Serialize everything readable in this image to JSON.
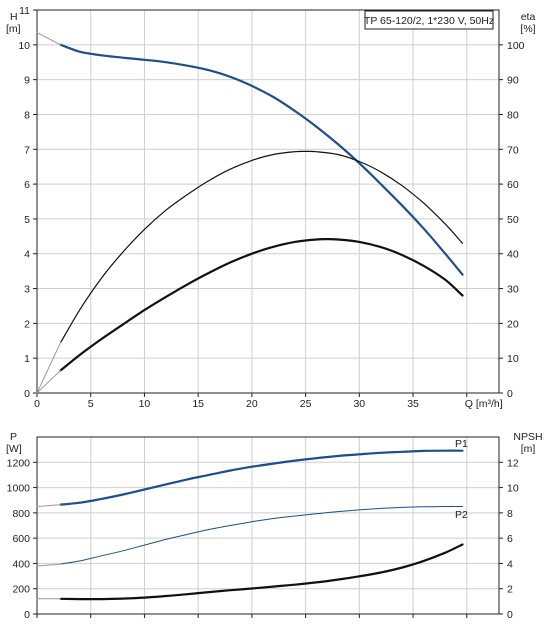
{
  "chart_data": [
    {
      "type": "line",
      "title": "TP 65-120/2, 1*230 V, 50Hz",
      "x_axis": {
        "label": "Q [m³/h]",
        "range": [
          0,
          43
        ],
        "ticks": [
          0,
          5,
          10,
          15,
          20,
          25,
          30,
          35
        ]
      },
      "y_left": {
        "label_line1": "H",
        "label_line2": "[m]",
        "range": [
          0,
          11
        ],
        "ticks": [
          0,
          1,
          2,
          3,
          4,
          5,
          6,
          7,
          8,
          9,
          10,
          11
        ]
      },
      "y_right": {
        "label_line1": "eta",
        "label_line2": "[%]",
        "range": [
          0,
          110
        ],
        "ticks": [
          0,
          10,
          20,
          30,
          40,
          50,
          60,
          70,
          80,
          90,
          100
        ]
      },
      "grid": true,
      "series": [
        {
          "axis": "left",
          "color": "#1f4e8c",
          "width": 2.2,
          "x": [
            2.2,
            4,
            6,
            8,
            10,
            12,
            14,
            16,
            18,
            20,
            22,
            24,
            26,
            28,
            30,
            32,
            34,
            36,
            38,
            39.6
          ],
          "y": [
            10.0,
            9.8,
            9.7,
            9.63,
            9.57,
            9.5,
            9.4,
            9.27,
            9.08,
            8.82,
            8.5,
            8.1,
            7.65,
            7.15,
            6.6,
            6.0,
            5.38,
            4.72,
            4.0,
            3.4
          ]
        },
        {
          "axis": "left",
          "color": "#999999",
          "width": 1,
          "x": [
            0,
            2.2
          ],
          "y": [
            10.35,
            10.0
          ]
        },
        {
          "axis": "right",
          "color": "#111111",
          "width": 1.2,
          "x": [
            2.2,
            4,
            6,
            8,
            10,
            12,
            14,
            16,
            18,
            20,
            22,
            24,
            25,
            26,
            28,
            30,
            32,
            34,
            36,
            38,
            39.6
          ],
          "y": [
            14.5,
            24,
            33,
            40.5,
            47,
            52.5,
            57,
            61,
            64.3,
            66.8,
            68.5,
            69.3,
            69.4,
            69.3,
            68.5,
            66.5,
            63.5,
            59.5,
            54.5,
            48.5,
            43
          ]
        },
        {
          "axis": "right",
          "color": "#999999",
          "width": 1,
          "x": [
            0,
            2.2
          ],
          "y": [
            0,
            14.5
          ]
        },
        {
          "axis": "left",
          "color": "#111111",
          "width": 2.2,
          "x": [
            2.2,
            4,
            6,
            8,
            10,
            12,
            14,
            16,
            18,
            20,
            22,
            24,
            26,
            27,
            28,
            30,
            32,
            34,
            36,
            38,
            39.6
          ],
          "y": [
            0.65,
            1.1,
            1.55,
            1.97,
            2.38,
            2.76,
            3.12,
            3.45,
            3.75,
            4.0,
            4.2,
            4.34,
            4.41,
            4.42,
            4.41,
            4.34,
            4.19,
            3.96,
            3.65,
            3.25,
            2.8
          ]
        },
        {
          "axis": "left",
          "color": "#999999",
          "width": 1,
          "x": [
            0,
            2.2
          ],
          "y": [
            0,
            0.65
          ]
        }
      ]
    },
    {
      "type": "line",
      "x_axis": {
        "range": [
          0,
          43
        ],
        "ticks": [
          0,
          5,
          10,
          15,
          20,
          25,
          30,
          35
        ]
      },
      "y_left": {
        "label_line1": "P",
        "label_line2": "[W]",
        "range": [
          0,
          1400
        ],
        "ticks": [
          0,
          200,
          400,
          600,
          800,
          1000,
          1200
        ]
      },
      "y_right": {
        "label_line1": "NPSH",
        "label_line2": "[m]",
        "range": [
          0,
          14
        ],
        "ticks": [
          0,
          2,
          4,
          6,
          8,
          10,
          12
        ]
      },
      "grid": true,
      "series": [
        {
          "name": "P1",
          "axis": "left",
          "color": "#1f4e8c",
          "width": 2.2,
          "x": [
            2.2,
            4,
            6,
            8,
            10,
            12,
            14,
            16,
            18,
            20,
            22,
            24,
            26,
            28,
            30,
            32,
            34,
            36,
            38,
            39.6
          ],
          "y": [
            865,
            880,
            910,
            945,
            985,
            1025,
            1065,
            1100,
            1135,
            1165,
            1190,
            1213,
            1232,
            1250,
            1263,
            1275,
            1283,
            1290,
            1292,
            1292
          ]
        },
        {
          "axis": "left",
          "color": "#999999",
          "width": 1,
          "x": [
            0,
            2.2
          ],
          "y": [
            850,
            865
          ]
        },
        {
          "name": "P2",
          "axis": "left",
          "color": "#1f4e8c",
          "width": 1,
          "x": [
            2.2,
            4,
            6,
            8,
            10,
            12,
            14,
            16,
            18,
            20,
            22,
            24,
            26,
            28,
            30,
            32,
            34,
            36,
            38,
            39.6
          ],
          "y": [
            395,
            420,
            460,
            500,
            545,
            590,
            630,
            668,
            700,
            730,
            755,
            775,
            793,
            810,
            823,
            835,
            843,
            848,
            850,
            850
          ]
        },
        {
          "axis": "left",
          "color": "#999999",
          "width": 1,
          "x": [
            0,
            2.2
          ],
          "y": [
            380,
            395
          ]
        },
        {
          "axis": "right",
          "color": "#111111",
          "width": 2.2,
          "x": [
            2.2,
            4,
            6,
            8,
            10,
            12,
            14,
            16,
            18,
            20,
            22,
            24,
            26,
            28,
            30,
            32,
            34,
            36,
            38,
            39.6
          ],
          "y": [
            1.2,
            1.18,
            1.18,
            1.22,
            1.3,
            1.42,
            1.57,
            1.73,
            1.88,
            2.02,
            2.17,
            2.32,
            2.5,
            2.72,
            2.98,
            3.28,
            3.68,
            4.2,
            4.85,
            5.5
          ]
        },
        {
          "axis": "right",
          "color": "#999999",
          "width": 1,
          "x": [
            0,
            2.2
          ],
          "y": [
            1.2,
            1.2
          ]
        }
      ],
      "series_labels": [
        {
          "text": "P1",
          "x": 38.9,
          "y": 1352
        },
        {
          "text": "P2",
          "x": 38.9,
          "y": 790
        }
      ]
    }
  ]
}
